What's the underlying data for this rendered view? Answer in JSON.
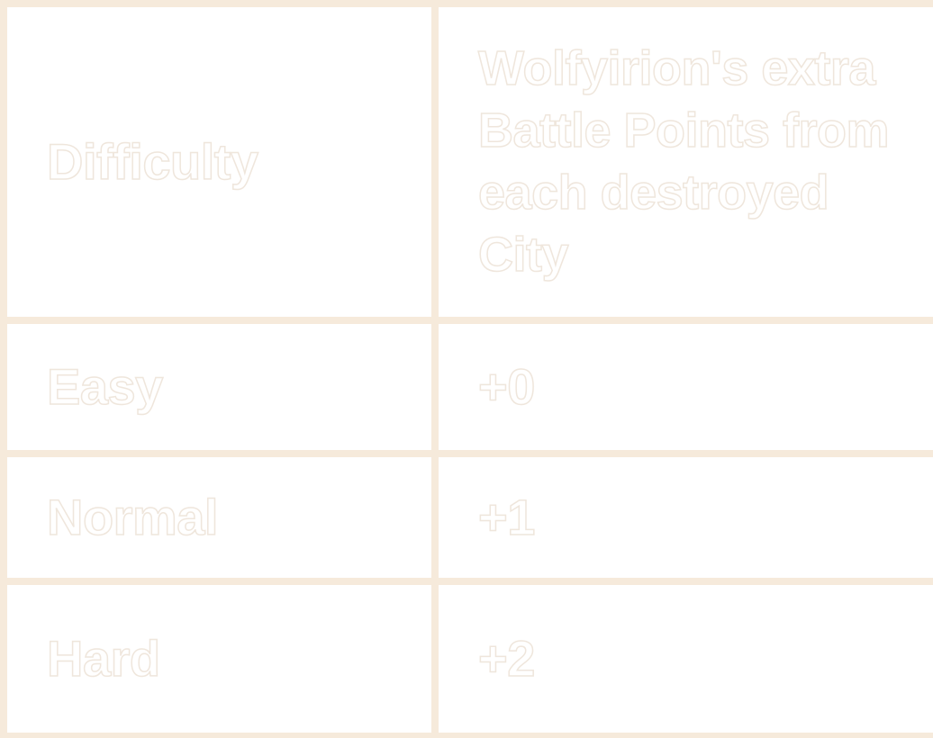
{
  "table": {
    "headers": [
      "Difficulty",
      "Wolfyirion's extra Battle Points from each destroyed City"
    ],
    "rows": [
      [
        "Easy",
        "+0"
      ],
      [
        "Normal",
        "+1"
      ],
      [
        "Hard",
        "+2"
      ]
    ]
  },
  "colors": {
    "border": "#f6eadb",
    "cell_background": "#ffffff"
  }
}
